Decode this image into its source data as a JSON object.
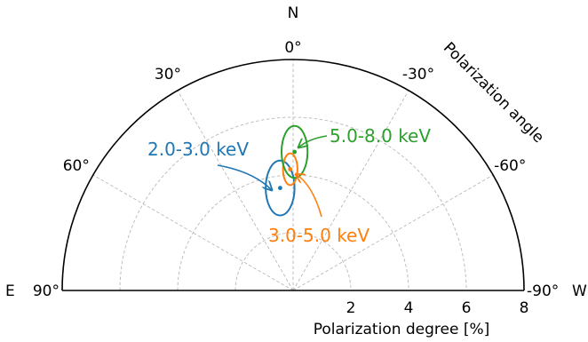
{
  "chart_data": {
    "type": "polar",
    "axis_label": "Polarization angle",
    "compass": {
      "north": "N",
      "east": "E",
      "west": "W"
    },
    "angle_ticks": [
      {
        "deg": 0,
        "label": "0°"
      },
      {
        "deg": 30,
        "label": "-30°"
      },
      {
        "deg": 60,
        "label": "-60°"
      },
      {
        "deg": 90,
        "label": "-90°"
      },
      {
        "deg": -30,
        "label": "30°"
      },
      {
        "deg": -60,
        "label": "60°"
      },
      {
        "deg": -90,
        "label": "90°"
      }
    ],
    "radial_ticks": [
      {
        "value": 2,
        "label": "2"
      },
      {
        "value": 4,
        "label": "4"
      },
      {
        "value": 6,
        "label": "6"
      },
      {
        "value": 8,
        "label": "8"
      }
    ],
    "radial_label": "Polarization degree [%]",
    "rmax": 8,
    "grid": true,
    "series": [
      {
        "name": "2.0-3.0 keV",
        "color": "#1f77b4",
        "center": {
          "x": -0.45,
          "y": 3.55
        },
        "rx": 0.5,
        "ry": 0.95
      },
      {
        "name": "3.0-5.0 keV",
        "color": "#ff7f0e",
        "center": {
          "x": -0.1,
          "y": 4.2
        },
        "rx": 0.25,
        "ry": 0.55
      },
      {
        "name": "5.0-8.0 keV",
        "color": "#2ca02c",
        "center": {
          "x": 0.05,
          "y": 4.8
        },
        "rx": 0.45,
        "ry": 0.9
      }
    ]
  }
}
